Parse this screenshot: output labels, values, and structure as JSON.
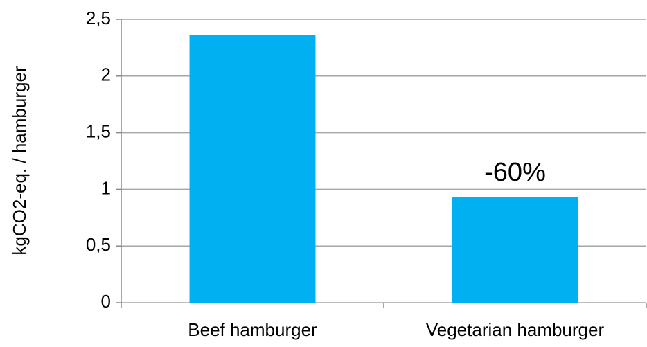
{
  "chart_data": {
    "type": "bar",
    "y_label": "kgCO2-eq. / hamburger",
    "categories": [
      "Beef hamburger",
      "Vegetarian hamburger"
    ],
    "values": [
      2.36,
      0.93
    ],
    "color": "#00b0f0",
    "annotation": "-60%",
    "ylim": [
      0,
      2.5
    ],
    "yticks": [
      0,
      {
        "value": 0.5,
        "label": "0,5"
      },
      1,
      {
        "value": 1.5,
        "label": "1,5"
      },
      2,
      {
        "value": 2.5,
        "label": "2,5"
      }
    ],
    "grid": true
  }
}
